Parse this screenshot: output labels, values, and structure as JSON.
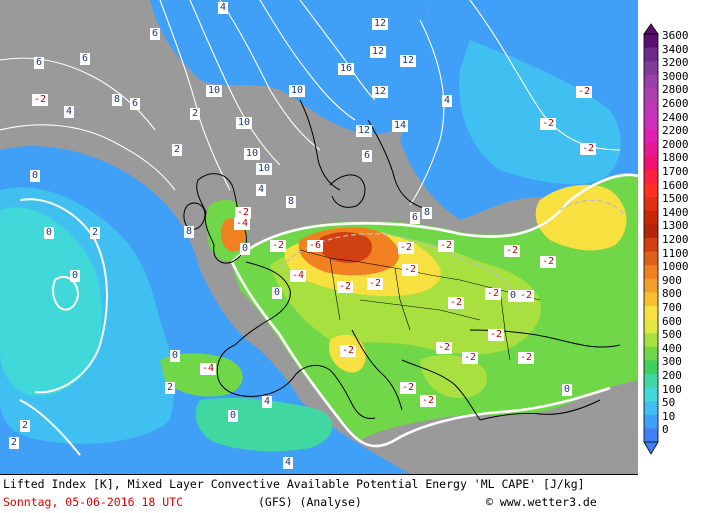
{
  "map": {
    "title": "Lifted Index [K], Mixed Layer Convective Available Potential Energy 'ML CAPE' [J/kg]",
    "date": "Sonntag, 05-06-2016  18 UTC",
    "model": "(GFS)   (Analyse)",
    "credit": "© www.wetter3.de",
    "colors": {
      "sea": "#9a9a9a",
      "contour": "#ffffff",
      "coast": "#000000",
      "lifted_index_negative": "#c00000"
    },
    "lifted_index_labels": [
      "6",
      "6",
      "6",
      "4",
      "10",
      "12",
      "12",
      "12",
      "6",
      "-2",
      "4",
      "8",
      "-2",
      "2",
      "10",
      "10",
      "16",
      "12",
      "-2",
      "4",
      "10",
      "12",
      "14",
      "2",
      "6",
      "8",
      "10",
      "-2",
      "6",
      "8",
      "-2",
      "2",
      "8",
      "0",
      "4",
      "0",
      "-4",
      "-2",
      "0",
      "-6",
      "-2",
      "-2",
      "-2",
      "-2",
      "-2",
      "-4",
      "-2",
      "-2",
      "0",
      "-2",
      "0",
      "-2",
      "-2",
      "-2",
      "-2",
      "-2",
      "-2",
      "-2",
      "-2",
      "-2",
      "-4",
      "0",
      "2",
      "4",
      "0",
      "2",
      "4",
      "2",
      "0",
      "0"
    ],
    "cape_scale": {
      "levels": [
        "3600",
        "3400",
        "3200",
        "3000",
        "2800",
        "2600",
        "2400",
        "2200",
        "2000",
        "1800",
        "1700",
        "1600",
        "1500",
        "1400",
        "1300",
        "1200",
        "1100",
        "1000",
        "900",
        "800",
        "700",
        "600",
        "500",
        "400",
        "300",
        "200",
        "100",
        "50",
        "10",
        "0"
      ],
      "colors": [
        "#5a1070",
        "#6e2a86",
        "#7f3c98",
        "#9a40a8",
        "#b040b0",
        "#c038b8",
        "#d030c0",
        "#e020b0",
        "#e81890",
        "#f01070",
        "#ff2040",
        "#ff3020",
        "#e03010",
        "#c82808",
        "#b02808",
        "#d04010",
        "#e06018",
        "#f08020",
        "#f0a028",
        "#f8c030",
        "#f8e040",
        "#e0e840",
        "#a8e040",
        "#70d848",
        "#40d060",
        "#40d8a0",
        "#40d8d8",
        "#40c0f0",
        "#40a0f8",
        "#4080f8"
      ]
    }
  }
}
